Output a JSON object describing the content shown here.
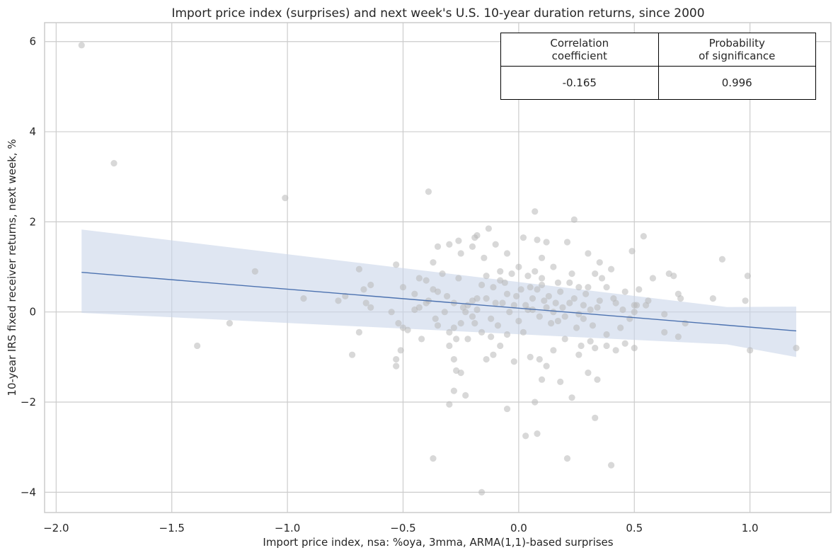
{
  "chart_data": {
    "type": "scatter",
    "title": "Import price index (surprises) and next week's U.S. 10-year duration returns, since 2000",
    "xlabel": "Import price index, nsa: %oya, 3mma, ARMA(1,1)-based surprises",
    "ylabel": "10-year IRS fixed receiver returns, next week, %",
    "xlim": [
      -2.05,
      1.35
    ],
    "ylim": [
      -4.45,
      6.42
    ],
    "xticks": [
      -2.0,
      -1.5,
      -1.0,
      -0.5,
      0.0,
      0.5,
      1.0
    ],
    "xtick_labels": [
      "−2.0",
      "−1.5",
      "−1.0",
      "−0.5",
      "0.0",
      "0.5",
      "1.0"
    ],
    "yticks": [
      -4,
      -2,
      0,
      2,
      4,
      6
    ],
    "ytick_labels": [
      "−4",
      "−2",
      "0",
      "2",
      "4",
      "6"
    ],
    "grid": true,
    "colors": {
      "points": "#b8b8b8",
      "line": "#4c72b0",
      "band": "#c9d5ea",
      "grid": "#cccccc"
    },
    "regression": {
      "x": [
        -1.89,
        1.2
      ],
      "y": [
        0.88,
        -0.42
      ]
    },
    "confidence_band": {
      "x": [
        -1.89,
        0.9,
        1.2
      ],
      "upper": [
        1.83,
        0.11,
        0.12
      ],
      "lower": [
        -0.02,
        -0.72,
        -1.0
      ]
    },
    "points": [
      [
        -1.89,
        5.92
      ],
      [
        -1.75,
        3.3
      ],
      [
        -1.01,
        2.53
      ],
      [
        -0.39,
        2.67
      ],
      [
        0.07,
        2.23
      ],
      [
        0.24,
        2.05
      ],
      [
        -0.13,
        1.85
      ],
      [
        -0.18,
        1.7
      ],
      [
        -0.19,
        1.65
      ],
      [
        -0.26,
        1.58
      ],
      [
        -0.35,
        1.45
      ],
      [
        -0.3,
        1.5
      ],
      [
        -0.2,
        1.45
      ],
      [
        -0.1,
        1.5
      ],
      [
        0.02,
        1.65
      ],
      [
        0.08,
        1.6
      ],
      [
        0.12,
        1.55
      ],
      [
        0.21,
        1.55
      ],
      [
        0.54,
        1.68
      ],
      [
        0.88,
        1.17
      ],
      [
        0.49,
        1.35
      ],
      [
        0.3,
        1.3
      ],
      [
        0.1,
        1.2
      ],
      [
        -0.05,
        1.3
      ],
      [
        -0.15,
        1.2
      ],
      [
        -0.25,
        1.3
      ],
      [
        -0.37,
        1.1
      ],
      [
        -0.43,
        0.75
      ],
      [
        -0.5,
        0.55
      ],
      [
        -0.53,
        1.05
      ],
      [
        -0.69,
        0.95
      ],
      [
        -0.75,
        0.35
      ],
      [
        -0.78,
        0.25
      ],
      [
        -0.93,
        0.3
      ],
      [
        -1.14,
        0.9
      ],
      [
        -1.25,
        -0.25
      ],
      [
        -1.39,
        -0.75
      ],
      [
        -0.72,
        -0.95
      ],
      [
        -0.69,
        -0.45
      ],
      [
        -0.67,
        0.5
      ],
      [
        -0.64,
        0.6
      ],
      [
        -0.64,
        0.1
      ],
      [
        -0.66,
        0.2
      ],
      [
        -0.55,
        0.0
      ],
      [
        -0.5,
        -0.35
      ],
      [
        -0.52,
        -0.25
      ],
      [
        -0.51,
        -0.85
      ],
      [
        -0.53,
        -1.05
      ],
      [
        -0.53,
        -1.2
      ],
      [
        -0.45,
        0.05
      ],
      [
        -0.4,
        0.2
      ],
      [
        -0.35,
        0.45
      ],
      [
        -0.31,
        0.35
      ],
      [
        -0.3,
        -0.45
      ],
      [
        -0.27,
        -0.6
      ],
      [
        -0.28,
        -0.35
      ],
      [
        -0.25,
        -0.25
      ],
      [
        -0.23,
        0.0
      ],
      [
        -0.2,
        0.25
      ],
      [
        -0.18,
        0.3
      ],
      [
        -0.16,
        0.6
      ],
      [
        -0.14,
        0.8
      ],
      [
        -0.11,
        0.55
      ],
      [
        -0.08,
        0.7
      ],
      [
        -0.05,
        0.4
      ],
      [
        -0.02,
        0.15
      ],
      [
        0.0,
        -0.2
      ],
      [
        0.02,
        -0.45
      ],
      [
        0.04,
        0.05
      ],
      [
        0.06,
        0.3
      ],
      [
        0.08,
        0.5
      ],
      [
        0.1,
        0.75
      ],
      [
        0.12,
        0.1
      ],
      [
        0.14,
        -0.25
      ],
      [
        0.16,
        0.2
      ],
      [
        0.18,
        0.45
      ],
      [
        0.2,
        -0.1
      ],
      [
        0.22,
        0.65
      ],
      [
        0.24,
        0.3
      ],
      [
        0.26,
        -0.05
      ],
      [
        0.28,
        0.15
      ],
      [
        0.3,
        0.55
      ],
      [
        0.32,
        -0.3
      ],
      [
        0.34,
        0.1
      ],
      [
        0.36,
        0.75
      ],
      [
        0.38,
        -0.5
      ],
      [
        0.4,
        0.95
      ],
      [
        0.42,
        0.2
      ],
      [
        0.44,
        -0.35
      ],
      [
        0.46,
        0.45
      ],
      [
        0.5,
        -0.8
      ],
      [
        0.52,
        0.5
      ],
      [
        0.56,
        0.25
      ],
      [
        0.58,
        0.75
      ],
      [
        0.63,
        -0.05
      ],
      [
        0.63,
        -0.45
      ],
      [
        0.65,
        0.85
      ],
      [
        0.67,
        0.8
      ],
      [
        0.69,
        0.4
      ],
      [
        0.7,
        0.3
      ],
      [
        0.72,
        -0.25
      ],
      [
        0.69,
        -0.55
      ],
      [
        0.84,
        0.3
      ],
      [
        0.99,
        0.8
      ],
      [
        0.98,
        0.25
      ],
      [
        1.0,
        -0.85
      ],
      [
        1.2,
        -0.8
      ],
      [
        0.5,
        0.0
      ],
      [
        0.5,
        0.15
      ],
      [
        0.55,
        0.15
      ],
      [
        -0.3,
        -0.75
      ],
      [
        -0.28,
        -1.05
      ],
      [
        -0.27,
        -1.3
      ],
      [
        -0.25,
        -1.35
      ],
      [
        -0.28,
        -1.75
      ],
      [
        -0.3,
        -2.05
      ],
      [
        -0.23,
        -1.85
      ],
      [
        -0.14,
        -1.05
      ],
      [
        -0.11,
        -0.95
      ],
      [
        -0.08,
        -0.75
      ],
      [
        -0.05,
        -2.15
      ],
      [
        0.03,
        -2.75
      ],
      [
        0.07,
        -2.0
      ],
      [
        0.08,
        -2.7
      ],
      [
        0.1,
        -1.5
      ],
      [
        0.12,
        -1.2
      ],
      [
        0.18,
        -1.55
      ],
      [
        0.21,
        -3.25
      ],
      [
        0.23,
        -1.9
      ],
      [
        0.26,
        -0.95
      ],
      [
        0.3,
        -1.35
      ],
      [
        0.33,
        -2.35
      ],
      [
        0.34,
        -1.5
      ],
      [
        0.4,
        -3.4
      ],
      [
        -0.37,
        -3.25
      ],
      [
        -0.16,
        -4.0
      ],
      [
        0.05,
        -1.0
      ],
      [
        -0.02,
        -1.1
      ],
      [
        0.09,
        -1.05
      ],
      [
        0.15,
        -0.85
      ],
      [
        0.2,
        -0.6
      ],
      [
        0.27,
        -0.75
      ],
      [
        0.31,
        -0.65
      ],
      [
        0.33,
        -0.8
      ],
      [
        0.38,
        -0.75
      ],
      [
        0.42,
        -0.85
      ],
      [
        0.46,
        -0.7
      ],
      [
        -0.05,
        -0.5
      ],
      [
        -0.09,
        -0.3
      ],
      [
        -0.12,
        -0.55
      ],
      [
        -0.16,
        -0.45
      ],
      [
        -0.19,
        -0.25
      ],
      [
        -0.22,
        -0.6
      ],
      [
        -0.35,
        -0.3
      ],
      [
        -0.42,
        -0.6
      ],
      [
        -0.48,
        -0.4
      ],
      [
        -0.14,
        0.3
      ],
      [
        -0.18,
        0.05
      ],
      [
        -0.22,
        0.15
      ],
      [
        -0.26,
        0.75
      ],
      [
        -0.33,
        0.85
      ],
      [
        -0.37,
        0.5
      ],
      [
        -0.4,
        0.7
      ],
      [
        -0.45,
        0.4
      ],
      [
        -0.1,
        0.2
      ],
      [
        -0.06,
        0.65
      ],
      [
        -0.03,
        0.85
      ],
      [
        0.0,
        1.0
      ],
      [
        0.04,
        0.8
      ],
      [
        0.07,
        0.9
      ],
      [
        0.1,
        0.6
      ],
      [
        0.13,
        0.35
      ],
      [
        0.17,
        0.65
      ],
      [
        0.19,
        0.1
      ],
      [
        0.23,
        0.85
      ],
      [
        0.26,
        0.55
      ],
      [
        0.29,
        0.4
      ],
      [
        0.33,
        0.85
      ],
      [
        0.35,
        0.25
      ],
      [
        0.38,
        0.55
      ],
      [
        0.41,
        0.3
      ],
      [
        0.45,
        0.05
      ],
      [
        0.48,
        -0.15
      ],
      [
        0.51,
        0.15
      ],
      [
        0.06,
        0.05
      ],
      [
        0.09,
        -0.1
      ],
      [
        0.11,
        0.25
      ],
      [
        0.15,
        0.0
      ],
      [
        0.17,
        -0.2
      ],
      [
        0.22,
        0.2
      ],
      [
        0.25,
        -0.35
      ],
      [
        0.28,
        -0.15
      ],
      [
        0.31,
        0.05
      ],
      [
        -0.04,
        0.0
      ],
      [
        -0.07,
        0.2
      ],
      [
        -0.01,
        0.35
      ],
      [
        0.03,
        0.15
      ],
      [
        -0.12,
        -0.15
      ],
      [
        -0.2,
        -0.1
      ],
      [
        -0.24,
        0.1
      ],
      [
        -0.28,
        0.2
      ],
      [
        -0.32,
        0.0
      ],
      [
        -0.36,
        -0.15
      ],
      [
        -0.39,
        0.25
      ],
      [
        -0.43,
        0.1
      ],
      [
        0.01,
        0.5
      ],
      [
        0.05,
        0.55
      ],
      [
        0.35,
        1.1
      ],
      [
        0.15,
        1.0
      ],
      [
        -0.08,
        0.9
      ]
    ]
  },
  "table": {
    "headers": [
      [
        "Correlation",
        "coefficient"
      ],
      [
        "Probability",
        "of significance"
      ]
    ],
    "values": [
      "-0.165",
      "0.996"
    ]
  }
}
